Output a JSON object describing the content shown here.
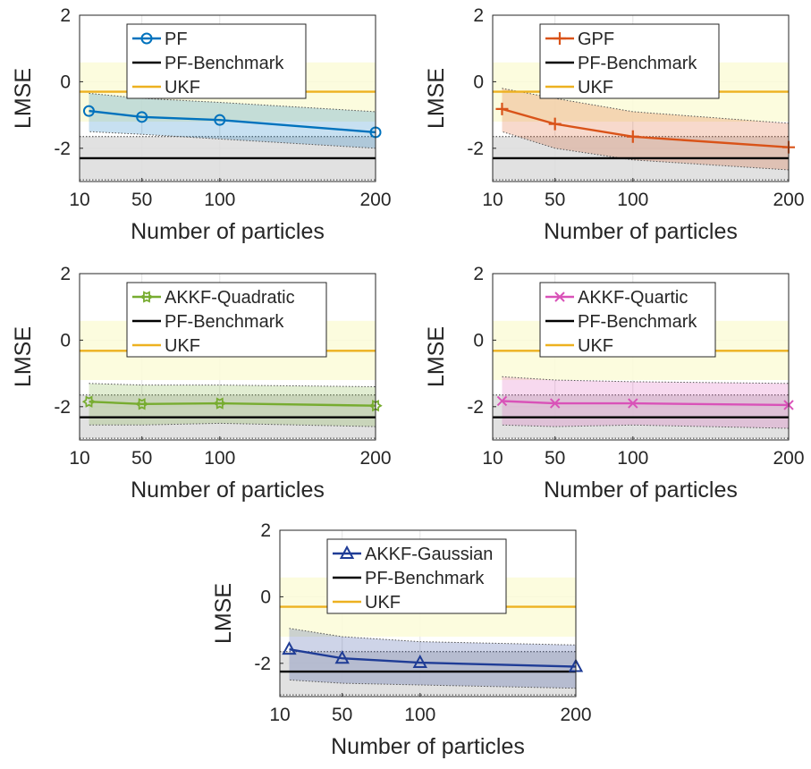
{
  "colors": {
    "benchmark": "#000000",
    "ukf": "#EDB120",
    "ukf_band": "#FCFBD8",
    "benchmark_band": "#DCDCDC",
    "PF": "#0072BD",
    "GPF": "#D95319",
    "AKKF-Quadratic": "#77AC30",
    "AKKF-Quartic": "#D952B8",
    "AKKF-Gaussian": "#1F3C96"
  },
  "chart_data": [
    {
      "type": "line",
      "xlabel": "Number of particles",
      "ylabel": "LMSE",
      "xlim": [
        10,
        200
      ],
      "ylim": [
        -3,
        2
      ],
      "xticks": [
        10,
        50,
        100,
        200
      ],
      "yticks": [
        -2,
        0,
        2
      ],
      "legend": [
        "PF",
        "PF-Benchmark",
        "UKF"
      ],
      "legend_position": "top-center",
      "method": {
        "name": "PF",
        "marker": "circle",
        "x": [
          16,
          50,
          100,
          200
        ],
        "y": [
          -0.88,
          -1.06,
          -1.15,
          -1.52
        ],
        "upper": [
          -0.35,
          -0.5,
          -0.62,
          -0.9
        ],
        "lower": [
          -1.5,
          -1.58,
          -1.72,
          -2.0
        ]
      },
      "benchmark": {
        "name": "PF-Benchmark",
        "y": -2.3,
        "upper": -1.65,
        "lower": -2.95
      },
      "ukf": {
        "name": "UKF",
        "y": -0.3,
        "upper": 0.58,
        "lower": -1.2
      }
    },
    {
      "type": "line",
      "xlabel": "Number of particles",
      "ylabel": "LMSE",
      "xlim": [
        10,
        200
      ],
      "ylim": [
        -3,
        2
      ],
      "xticks": [
        10,
        50,
        100,
        200
      ],
      "yticks": [
        -2,
        0,
        2
      ],
      "legend": [
        "GPF",
        "PF-Benchmark",
        "UKF"
      ],
      "legend_position": "top-center",
      "method": {
        "name": "GPF",
        "marker": "plus",
        "x": [
          16,
          50,
          100,
          200
        ],
        "y": [
          -0.82,
          -1.27,
          -1.65,
          -1.97
        ],
        "upper": [
          -0.2,
          -0.5,
          -0.9,
          -1.25
        ],
        "lower": [
          -1.5,
          -2.0,
          -2.35,
          -2.65
        ]
      },
      "benchmark": {
        "name": "PF-Benchmark",
        "y": -2.3,
        "upper": -1.65,
        "lower": -2.95
      },
      "ukf": {
        "name": "UKF",
        "y": -0.3,
        "upper": 0.58,
        "lower": -1.2
      }
    },
    {
      "type": "line",
      "xlabel": "Number of particles",
      "ylabel": "LMSE",
      "xlim": [
        10,
        200
      ],
      "ylim": [
        -3,
        2
      ],
      "xticks": [
        10,
        50,
        100,
        200
      ],
      "yticks": [
        -2,
        0,
        2
      ],
      "legend": [
        "AKKF-Quadratic",
        "PF-Benchmark",
        "UKF"
      ],
      "legend_position": "top-center",
      "method": {
        "name": "AKKF-Quadratic",
        "marker": "hexagram",
        "x": [
          16,
          50,
          100,
          200
        ],
        "y": [
          -1.85,
          -1.92,
          -1.9,
          -1.97
        ],
        "upper": [
          -1.3,
          -1.35,
          -1.35,
          -1.4
        ],
        "lower": [
          -2.55,
          -2.55,
          -2.5,
          -2.6
        ]
      },
      "benchmark": {
        "name": "PF-Benchmark",
        "y": -2.32,
        "upper": -1.65,
        "lower": -2.95
      },
      "ukf": {
        "name": "UKF",
        "y": -0.32,
        "upper": 0.58,
        "lower": -1.2
      }
    },
    {
      "type": "line",
      "xlabel": "Number of particles",
      "ylabel": "LMSE",
      "xlim": [
        10,
        200
      ],
      "ylim": [
        -3,
        2
      ],
      "xticks": [
        10,
        50,
        100,
        200
      ],
      "yticks": [
        -2,
        0,
        2
      ],
      "legend": [
        "AKKF-Quartic",
        "PF-Benchmark",
        "UKF"
      ],
      "legend_position": "top-center",
      "method": {
        "name": "AKKF-Quartic",
        "marker": "x",
        "x": [
          16,
          50,
          100,
          200
        ],
        "y": [
          -1.83,
          -1.9,
          -1.9,
          -1.95
        ],
        "upper": [
          -1.1,
          -1.2,
          -1.25,
          -1.3
        ],
        "lower": [
          -2.55,
          -2.6,
          -2.55,
          -2.65
        ]
      },
      "benchmark": {
        "name": "PF-Benchmark",
        "y": -2.32,
        "upper": -1.65,
        "lower": -2.95
      },
      "ukf": {
        "name": "UKF",
        "y": -0.32,
        "upper": 0.58,
        "lower": -1.2
      }
    },
    {
      "type": "line",
      "xlabel": "Number of particles",
      "ylabel": "LMSE",
      "xlim": [
        10,
        200
      ],
      "ylim": [
        -3,
        2
      ],
      "xticks": [
        10,
        50,
        100,
        200
      ],
      "yticks": [
        -2,
        0,
        2
      ],
      "legend": [
        "AKKF-Gaussian",
        "PF-Benchmark",
        "UKF"
      ],
      "legend_position": "top-center",
      "method": {
        "name": "AKKF-Gaussian",
        "marker": "triangle",
        "x": [
          16,
          50,
          100,
          200
        ],
        "y": [
          -1.58,
          -1.85,
          -1.98,
          -2.1
        ],
        "upper": [
          -0.95,
          -1.2,
          -1.35,
          -1.45
        ],
        "lower": [
          -2.5,
          -2.6,
          -2.65,
          -2.75
        ]
      },
      "benchmark": {
        "name": "PF-Benchmark",
        "y": -2.25,
        "upper": -1.65,
        "lower": -2.95
      },
      "ukf": {
        "name": "UKF",
        "y": -0.3,
        "upper": 0.58,
        "lower": -1.2
      }
    }
  ]
}
